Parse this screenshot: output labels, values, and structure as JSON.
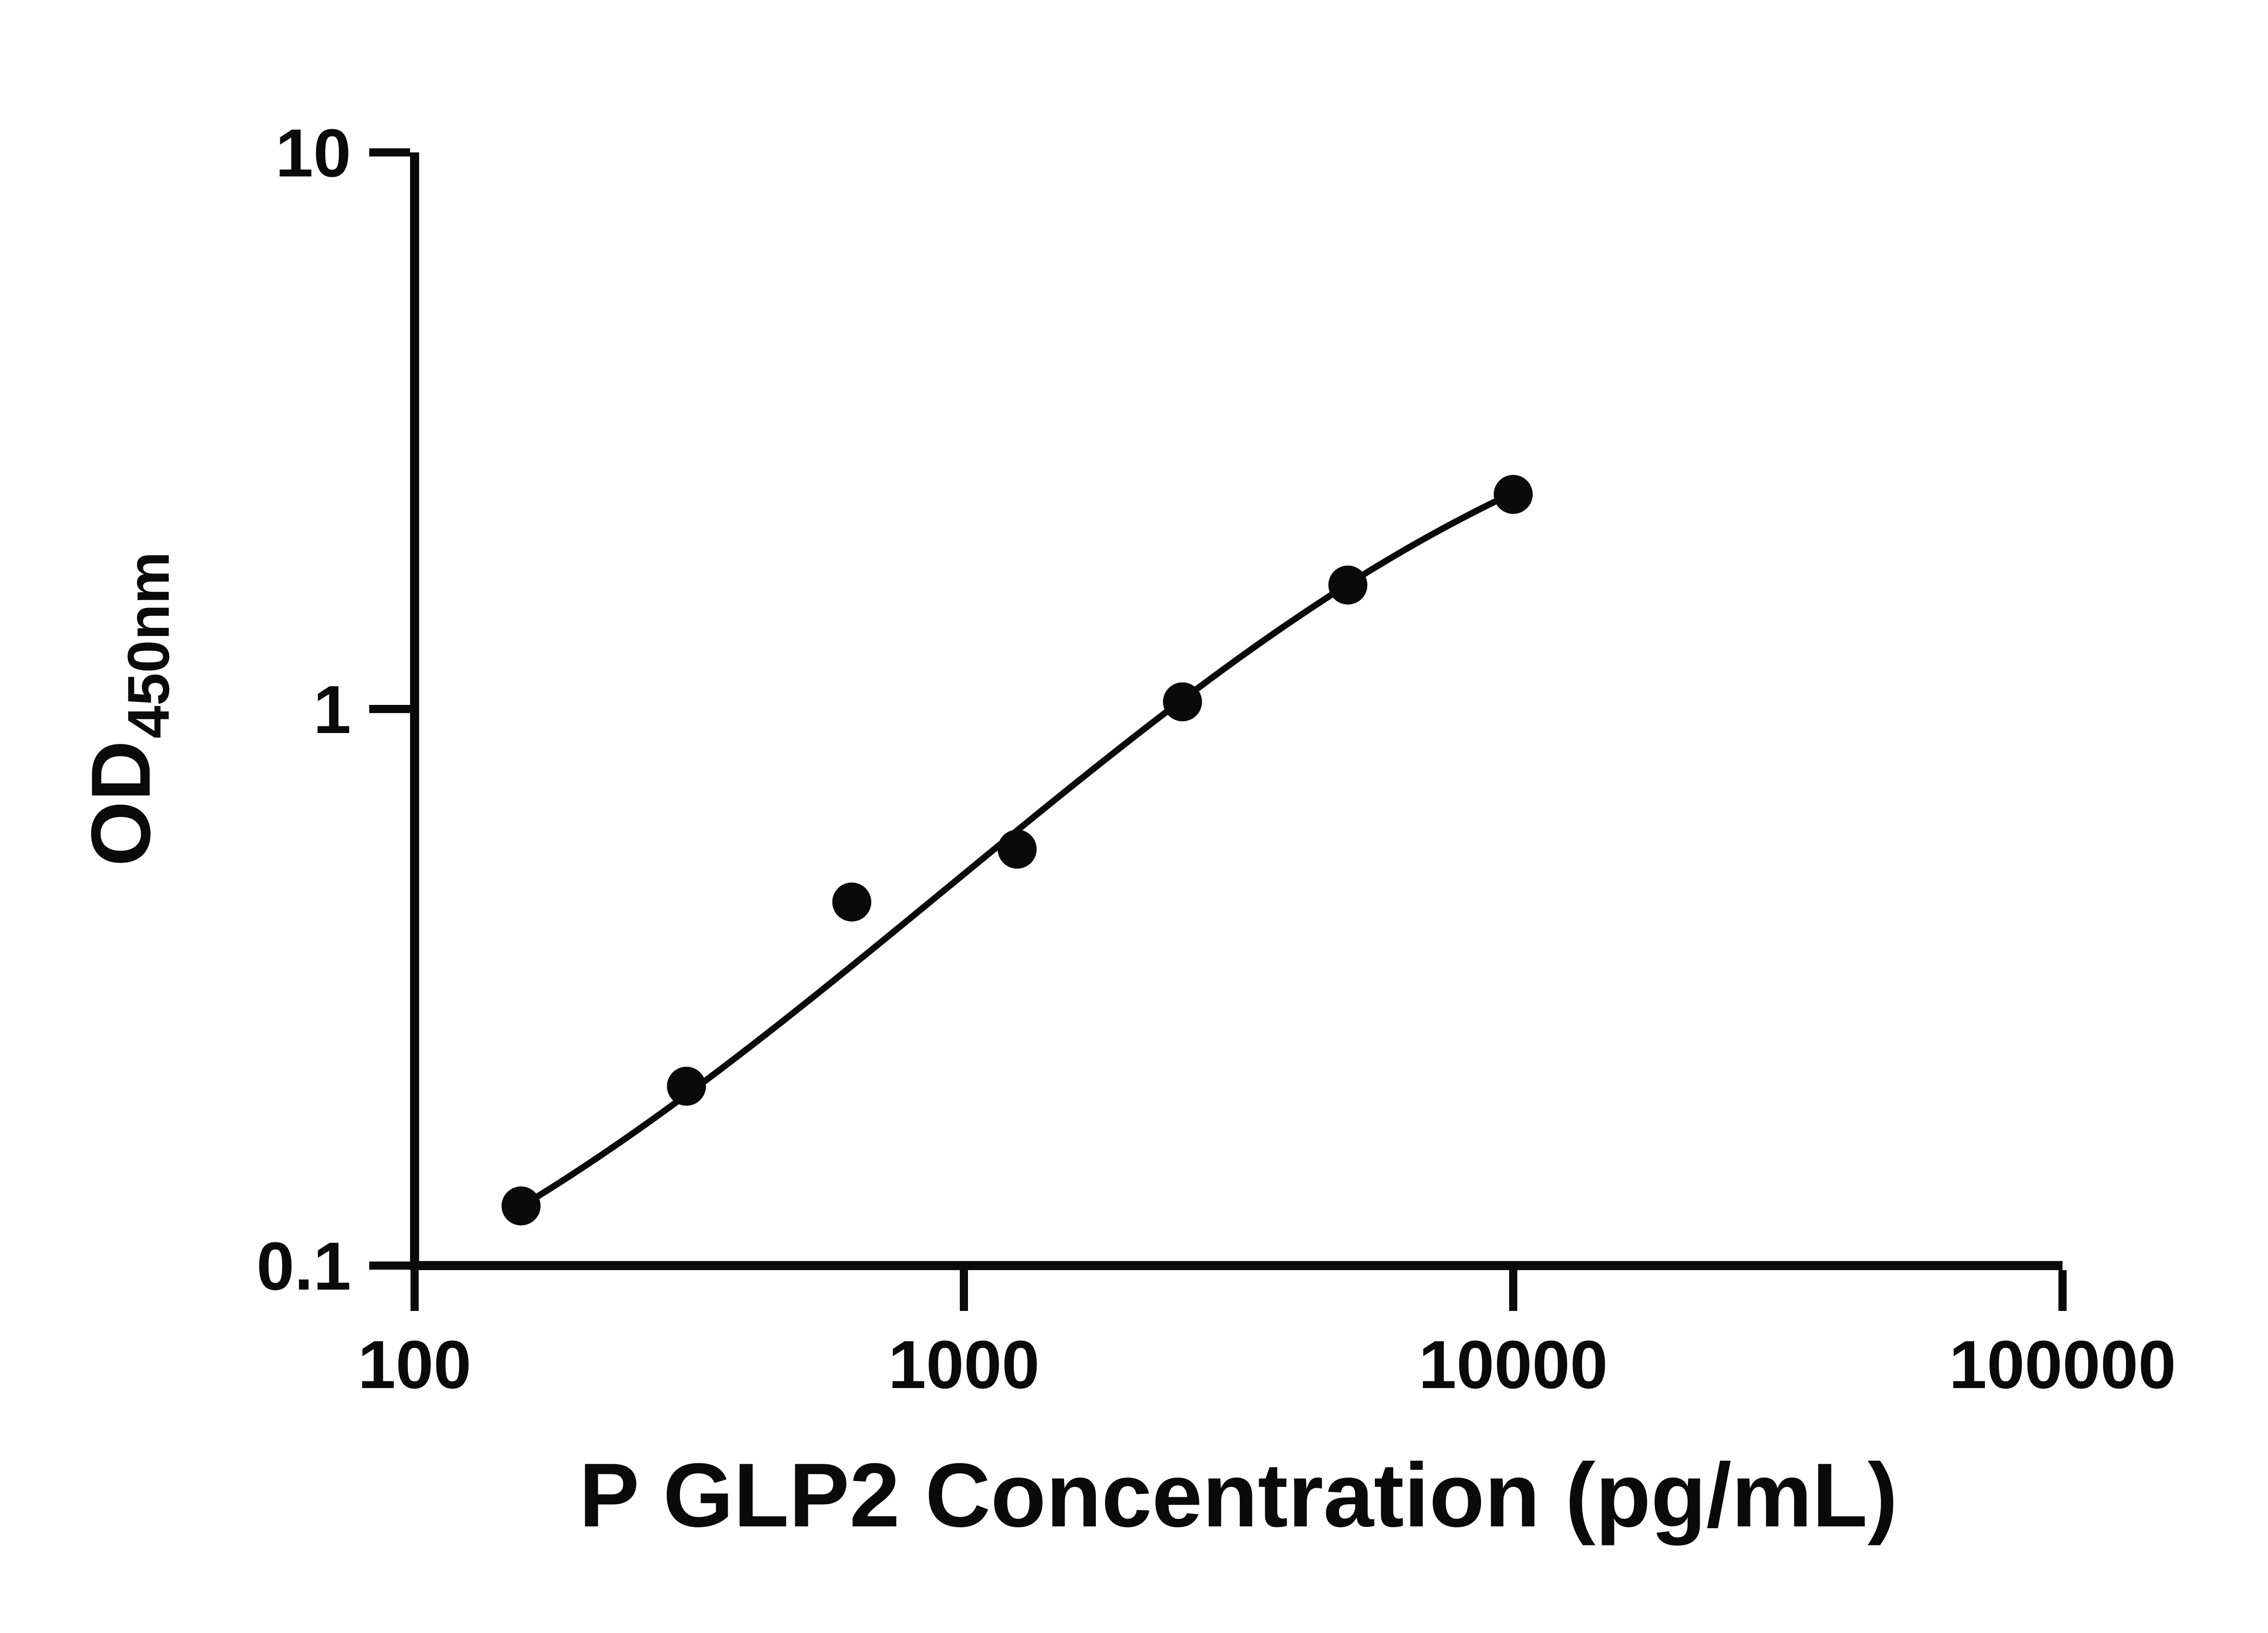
{
  "chart_data": {
    "type": "scatter",
    "title": "",
    "xlabel": "P GLP2 Concentration (pg/mL)",
    "ylabel": "OD450nm",
    "ylabel_main": "OD",
    "ylabel_subscript": "450nm",
    "x_scale": "log",
    "y_scale": "log",
    "xlim": [
      100,
      100000
    ],
    "ylim": [
      0.1,
      10
    ],
    "grid": false,
    "legend": "none",
    "x_ticks": [
      {
        "value": 100,
        "label": "100"
      },
      {
        "value": 1000,
        "label": "1000"
      },
      {
        "value": 10000,
        "label": "10000"
      },
      {
        "value": 100000,
        "label": "100000"
      }
    ],
    "y_ticks": [
      {
        "value": 10,
        "label": "10"
      },
      {
        "value": 1,
        "label": "1"
      },
      {
        "value": 0.1,
        "label": "0.1"
      }
    ],
    "points": [
      {
        "x": 156.25,
        "y": 0.128
      },
      {
        "x": 312.5,
        "y": 0.21
      },
      {
        "x": 625,
        "y": 0.45
      },
      {
        "x": 1250,
        "y": 0.56
      },
      {
        "x": 2500,
        "y": 1.03
      },
      {
        "x": 5000,
        "y": 1.67
      },
      {
        "x": 10000,
        "y": 2.43
      }
    ],
    "fit_curve": {
      "model": "4PL",
      "bottom": 0.05,
      "top": 4.6,
      "ec50": 9000,
      "hill": 1.0,
      "x_start": 156.25,
      "x_end": 10000
    },
    "marker_color": "#0a0a0a",
    "line_color": "#0a0a0a",
    "background": "#ffffff"
  }
}
